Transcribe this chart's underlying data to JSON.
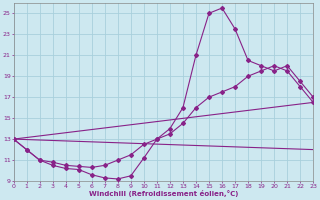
{
  "xlabel": "Windchill (Refroidissement éolien,°C)",
  "bg_color": "#cde8f0",
  "grid_color": "#a8d0dc",
  "line_color": "#882288",
  "xlim": [
    0,
    23
  ],
  "ylim": [
    9,
    26
  ],
  "xticks": [
    0,
    1,
    2,
    3,
    4,
    5,
    6,
    7,
    8,
    9,
    10,
    11,
    12,
    13,
    14,
    15,
    16,
    17,
    18,
    19,
    20,
    21,
    22,
    23
  ],
  "yticks": [
    9,
    11,
    13,
    15,
    17,
    19,
    21,
    23,
    25
  ],
  "series1_x": [
    0,
    1,
    2,
    3,
    4,
    5,
    6,
    7,
    8,
    9,
    10,
    11,
    12,
    13,
    14,
    15,
    16,
    17,
    18,
    19,
    20,
    21,
    22,
    23
  ],
  "series1_y": [
    13,
    12,
    11,
    10.5,
    10.2,
    10.1,
    9.6,
    9.3,
    9.2,
    9.5,
    11.2,
    13,
    14,
    16,
    21,
    25,
    25.5,
    23.5,
    20.5,
    20,
    19.5,
    20,
    18.5,
    17
  ],
  "series2_x": [
    0,
    1,
    2,
    3,
    4,
    5,
    6,
    7,
    8,
    9,
    10,
    11,
    12,
    13,
    14,
    15,
    16,
    17,
    18,
    19,
    20,
    21,
    22,
    23
  ],
  "series2_y": [
    13,
    12,
    11,
    10.8,
    10.5,
    10.4,
    10.3,
    10.5,
    11,
    11.5,
    12.5,
    13,
    13.5,
    14.5,
    16,
    17,
    17.5,
    18,
    19,
    19.5,
    20,
    19.5,
    18,
    16.5
  ],
  "line1_x": [
    0,
    23
  ],
  "line1_y": [
    13,
    16.5
  ],
  "line2_x": [
    0,
    23
  ],
  "line2_y": [
    13,
    12.0
  ]
}
